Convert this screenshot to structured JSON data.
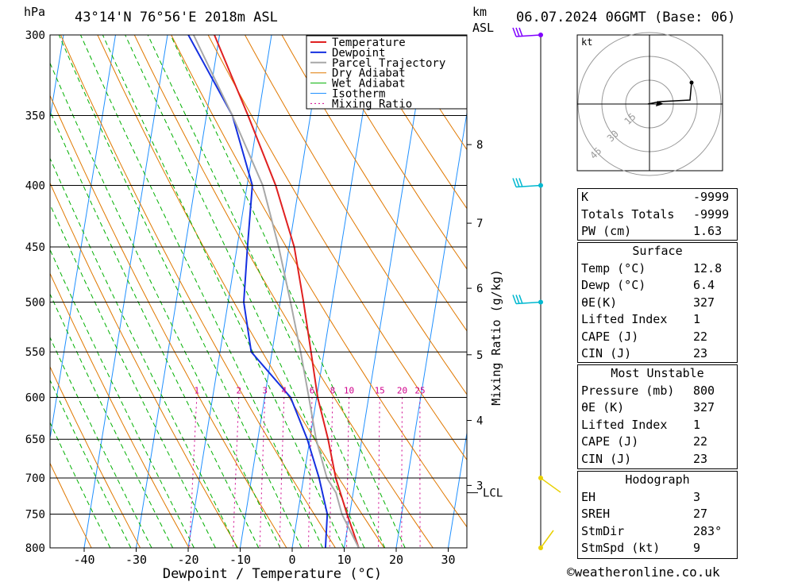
{
  "header": {
    "location": "43°14'N 76°56'E 2018m ASL",
    "datetime": "06.07.2024 06GMT (Base: 06)",
    "pressure_unit": "hPa",
    "height_unit": "km",
    "height_unit_sub": "ASL"
  },
  "footer": {
    "copyright": "©weatheronline.co.uk"
  },
  "chart_data": {
    "type": "line",
    "title": "43°14'N 76°56'E 2018m ASL",
    "xlabel": "Dewpoint / Temperature (°C)",
    "ylabel": "hPa",
    "y2label": "Mixing Ratio (g/kg)",
    "xlim": [
      -47,
      33
    ],
    "ylim": [
      800,
      300
    ],
    "x_ticks": [
      -40,
      -30,
      -20,
      -10,
      0,
      10,
      20,
      30
    ],
    "pressure_levels": [
      300,
      350,
      400,
      450,
      500,
      550,
      600,
      650,
      700,
      750,
      800
    ],
    "height_km_ticks": [
      {
        "label": "8",
        "p": 370
      },
      {
        "label": "7",
        "p": 430
      },
      {
        "label": "6",
        "p": 487
      },
      {
        "label": "5",
        "p": 553
      },
      {
        "label": "4",
        "p": 627
      },
      {
        "label": "3",
        "p": 710
      }
    ],
    "lcl": {
      "label": "LCL",
      "p": 720
    },
    "mixing_ratio_labels": [
      "1",
      "2",
      "3",
      "4",
      "6",
      "8",
      "10",
      "15",
      "20",
      "25"
    ],
    "legend": [
      "Temperature",
      "Dewpoint",
      "Parcel Trajectory",
      "Dry Adiabat",
      "Wet Adiabat",
      "Isotherm",
      "Mixing Ratio"
    ],
    "legend_position": "top-right",
    "colors": {
      "temperature": "#e02020",
      "dewpoint": "#1530e0",
      "parcel": "#a8a8a8",
      "dry_adiabat": "#e07800",
      "wet_adiabat": "#00b000",
      "isotherm": "#2090ff",
      "mixing_ratio": "#d0008c"
    },
    "series": [
      {
        "name": "Temperature",
        "points": [
          [
            12.8,
            800
          ],
          [
            9.5,
            750
          ],
          [
            6.2,
            700
          ],
          [
            3.5,
            650
          ],
          [
            0.2,
            600
          ],
          [
            -2.5,
            550
          ],
          [
            -5.5,
            500
          ],
          [
            -9,
            450
          ],
          [
            -14.5,
            400
          ],
          [
            -22,
            350
          ],
          [
            -31,
            300
          ]
        ]
      },
      {
        "name": "Dewpoint",
        "points": [
          [
            6.4,
            800
          ],
          [
            5.7,
            750
          ],
          [
            3,
            700
          ],
          [
            -0.5,
            650
          ],
          [
            -5,
            600
          ],
          [
            -14,
            550
          ],
          [
            -17,
            500
          ],
          [
            -18,
            450
          ],
          [
            -19,
            400
          ],
          [
            -25,
            350
          ],
          [
            -36,
            300
          ]
        ]
      },
      {
        "name": "Parcel Trajectory",
        "points": [
          [
            12.8,
            800
          ],
          [
            8.5,
            750
          ],
          [
            6.7,
            720
          ],
          [
            4.5,
            700
          ],
          [
            1.2,
            650
          ],
          [
            -1.5,
            600
          ],
          [
            -4.5,
            550
          ],
          [
            -8,
            500
          ],
          [
            -12,
            450
          ],
          [
            -17,
            400
          ],
          [
            -25,
            350
          ],
          [
            -35,
            300
          ]
        ]
      }
    ],
    "wind_barbs": [
      {
        "p": 300,
        "color": "#8000ff"
      },
      {
        "p": 400,
        "color": "#00b8d0"
      },
      {
        "p": 500,
        "color": "#00b8d0"
      },
      {
        "p": 700,
        "color": "#e8d000"
      },
      {
        "p": 800,
        "color": "#e8d000"
      }
    ],
    "hodograph": {
      "unit": "kt",
      "ring_labels": [
        "15",
        "30",
        "45"
      ]
    }
  },
  "indices": {
    "rows": [
      {
        "label": "K",
        "value": "-9999"
      },
      {
        "label": "Totals Totals",
        "value": "-9999"
      },
      {
        "label": "PW (cm)",
        "value": "1.63"
      }
    ]
  },
  "surface": {
    "title": "Surface",
    "rows": [
      {
        "label": "Temp (°C)",
        "value": "12.8"
      },
      {
        "label": "Dewp (°C)",
        "value": "6.4"
      },
      {
        "label": "θE(K)",
        "value": "327"
      },
      {
        "label": "Lifted Index",
        "value": "1"
      },
      {
        "label": "CAPE (J)",
        "value": "22"
      },
      {
        "label": "CIN (J)",
        "value": "23"
      }
    ]
  },
  "most_unstable": {
    "title": "Most Unstable",
    "rows": [
      {
        "label": "Pressure (mb)",
        "value": "800"
      },
      {
        "label": "θE (K)",
        "value": "327"
      },
      {
        "label": "Lifted Index",
        "value": "1"
      },
      {
        "label": "CAPE (J)",
        "value": "22"
      },
      {
        "label": "CIN (J)",
        "value": "23"
      }
    ]
  },
  "hodograph_table": {
    "title": "Hodograph",
    "rows": [
      {
        "label": "EH",
        "value": "3"
      },
      {
        "label": "SREH",
        "value": "27"
      },
      {
        "label": "StmDir",
        "value": "283°"
      },
      {
        "label": "StmSpd (kt)",
        "value": "9"
      }
    ]
  }
}
